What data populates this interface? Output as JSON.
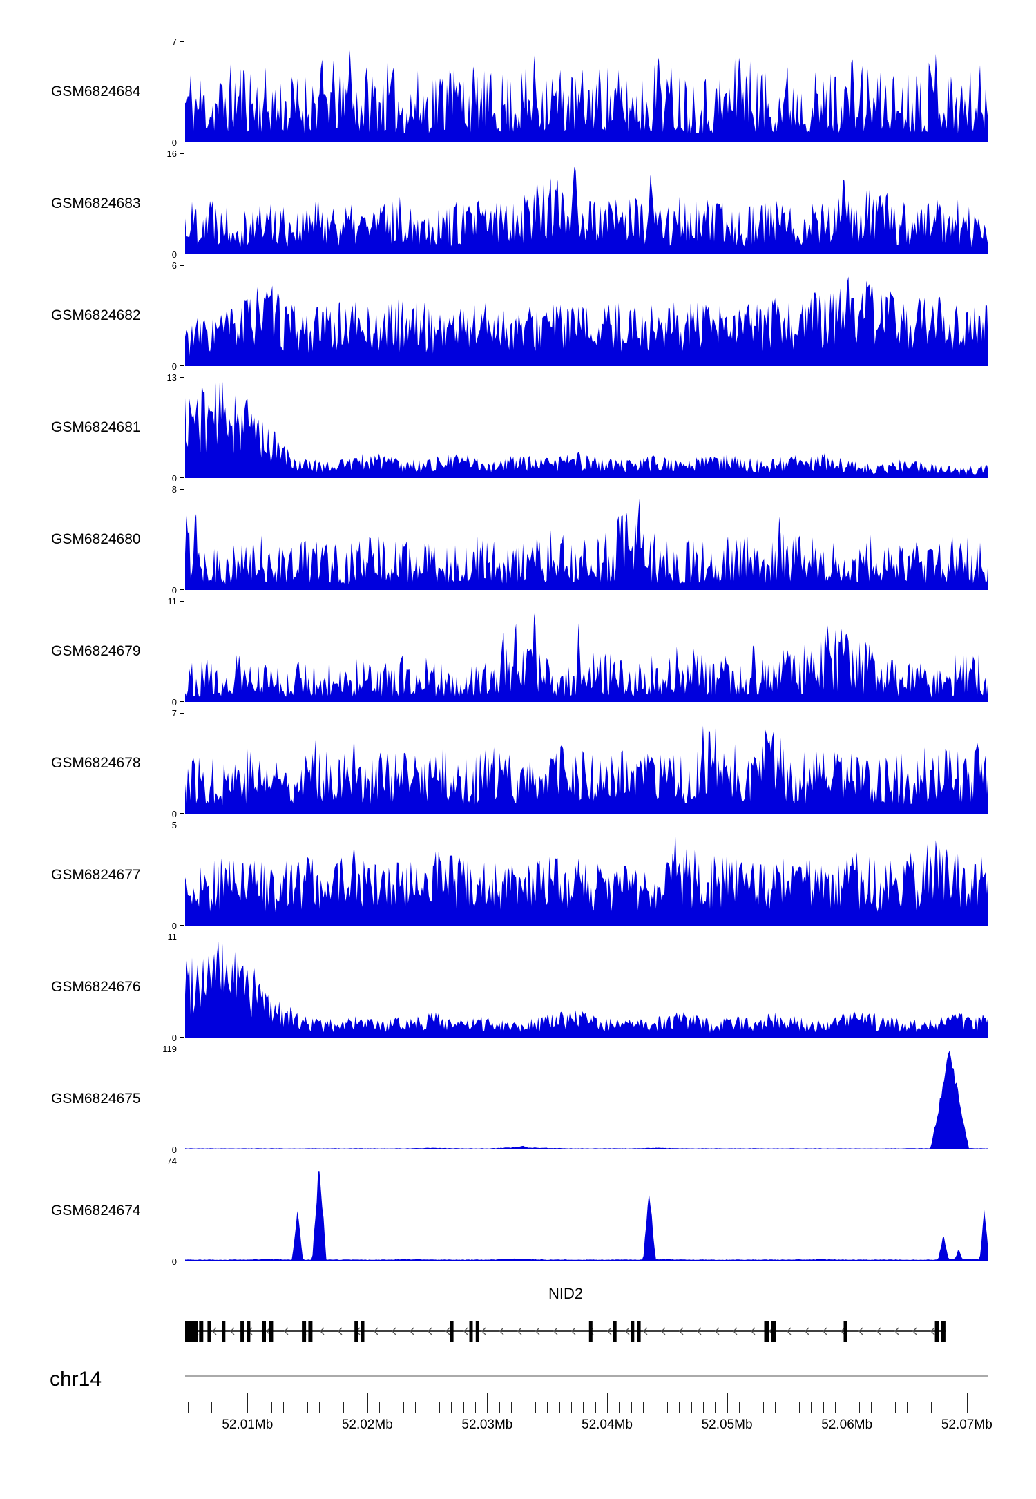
{
  "colors": {
    "coverage": "#0000dd",
    "gene": "#000000",
    "arrow": "#555555",
    "axis_line": "#aaaaaa",
    "tick": "#222222",
    "text": "#000000"
  },
  "gene": {
    "name": "NID2",
    "strand": "-",
    "extent": [
      0.0,
      0.947
    ],
    "exons": [
      {
        "f": 0.006,
        "w": 22
      },
      {
        "f": 0.02,
        "w": 6
      },
      {
        "f": 0.03,
        "w": 5
      },
      {
        "f": 0.048,
        "w": 5
      },
      {
        "f": 0.071,
        "w": 5
      },
      {
        "f": 0.079,
        "w": 5
      },
      {
        "f": 0.098,
        "w": 6
      },
      {
        "f": 0.107,
        "w": 6
      },
      {
        "f": 0.148,
        "w": 6
      },
      {
        "f": 0.156,
        "w": 6
      },
      {
        "f": 0.213,
        "w": 5
      },
      {
        "f": 0.221,
        "w": 5
      },
      {
        "f": 0.332,
        "w": 5
      },
      {
        "f": 0.356,
        "w": 5
      },
      {
        "f": 0.364,
        "w": 5
      },
      {
        "f": 0.505,
        "w": 5
      },
      {
        "f": 0.535,
        "w": 5
      },
      {
        "f": 0.557,
        "w": 5
      },
      {
        "f": 0.565,
        "w": 5
      },
      {
        "f": 0.724,
        "w": 7
      },
      {
        "f": 0.733,
        "w": 7
      },
      {
        "f": 0.822,
        "w": 5
      },
      {
        "f": 0.936,
        "w": 6
      },
      {
        "f": 0.944,
        "w": 6
      }
    ]
  },
  "axis": {
    "chromosome": "chr14",
    "unit": "Mb",
    "region_start": 52.0048,
    "region_end": 52.0718,
    "minor_start": 52.005,
    "minor_step": 0.001,
    "minor_end": 52.0715,
    "majors": [
      {
        "pos": 52.01,
        "label": "52.01Mb"
      },
      {
        "pos": 52.02,
        "label": "52.02Mb"
      },
      {
        "pos": 52.03,
        "label": "52.03Mb"
      },
      {
        "pos": 52.04,
        "label": "52.04Mb"
      },
      {
        "pos": 52.05,
        "label": "52.05Mb"
      },
      {
        "pos": 52.06,
        "label": "52.06Mb"
      },
      {
        "pos": 52.07,
        "label": "52.07Mb"
      }
    ]
  },
  "chart_data": {
    "type": "area",
    "title": "",
    "description": "Genome browser read-coverage tracks (11 GEO samples) over the NID2 locus on chr14, region ~52.0048-52.0718 Mb. Each track is a filled blue coverage histogram with its own y-axis from 0 to ymax.",
    "x_unit": "Mb",
    "x_range": [
      52.0048,
      52.0718
    ],
    "y_zero_label": "0",
    "tracks": [
      {
        "label": "GSM6824684",
        "ymax": 7,
        "ymax_label": "7",
        "y0_label": "0",
        "env": [
          0.85,
          0.7,
          0.9,
          0.75,
          0.7,
          0.88,
          0.72,
          0.9,
          0.7,
          0.8,
          0.86,
          0.7,
          0.78,
          0.9,
          0.72,
          0.84,
          0.7,
          0.88,
          0.78,
          0.7,
          0.9,
          0.78,
          0.84,
          0.7,
          0.88,
          0.74,
          0.82,
          0.88,
          0.72,
          0.84
        ],
        "peaks": [
          {
            "pos": 0.205,
            "h": 1.0,
            "w": 0.005
          },
          {
            "pos": 0.33,
            "h": 0.95,
            "w": 0.004
          },
          {
            "pos": 0.435,
            "h": 0.92,
            "w": 0.004
          },
          {
            "pos": 0.59,
            "h": 0.96,
            "w": 0.004
          },
          {
            "pos": 0.69,
            "h": 1.0,
            "w": 0.005
          },
          {
            "pos": 0.935,
            "h": 0.97,
            "w": 0.004
          }
        ],
        "render": {
          "seed": 11,
          "mix": 0.88,
          "pow": 1.4
        }
      },
      {
        "label": "GSM6824683",
        "ymax": 16,
        "ymax_label": "16",
        "y0_label": "0",
        "env": [
          0.55,
          0.68,
          0.52,
          0.6,
          0.48,
          0.62,
          0.5,
          0.55,
          0.6,
          0.5,
          0.54,
          0.58,
          0.62,
          0.95,
          0.6,
          0.55,
          0.65,
          0.5,
          0.6,
          0.54,
          0.5,
          0.6,
          0.5,
          0.64,
          0.56,
          0.7,
          0.52,
          0.6,
          0.56,
          0.3
        ],
        "peaks": [
          {
            "pos": 0.485,
            "h": 1.0,
            "w": 0.007
          },
          {
            "pos": 0.58,
            "h": 0.9,
            "w": 0.005
          },
          {
            "pos": 0.82,
            "h": 0.88,
            "w": 0.005
          }
        ],
        "render": {
          "seed": 22,
          "mix": 0.85,
          "pow": 1.1
        }
      },
      {
        "label": "GSM6824682",
        "ymax": 6,
        "ymax_label": "6",
        "y0_label": "0",
        "env": [
          0.45,
          0.55,
          0.68,
          0.85,
          0.6,
          0.62,
          0.68,
          0.58,
          0.72,
          0.6,
          0.64,
          0.68,
          0.58,
          0.68,
          0.62,
          0.6,
          0.68,
          0.62,
          0.68,
          0.6,
          0.64,
          0.68,
          0.72,
          0.78,
          0.95,
          0.85,
          0.68,
          0.72,
          0.68,
          0.62
        ],
        "peaks": [
          {
            "pos": 0.09,
            "h": 0.95,
            "w": 0.004
          },
          {
            "pos": 0.825,
            "h": 1.0,
            "w": 0.005
          }
        ],
        "render": {
          "seed": 33,
          "mix": 0.8,
          "pow": 0.95
        }
      },
      {
        "label": "GSM6824681",
        "ymax": 13,
        "ymax_label": "13",
        "y0_label": "0",
        "env": [
          0.9,
          1.0,
          0.92,
          0.55,
          0.22,
          0.18,
          0.22,
          0.28,
          0.18,
          0.22,
          0.26,
          0.18,
          0.24,
          0.2,
          0.28,
          0.22,
          0.18,
          0.24,
          0.18,
          0.26,
          0.22,
          0.18,
          0.24,
          0.28,
          0.18,
          0.14,
          0.2,
          0.14,
          0.12,
          0.14
        ],
        "peaks": [],
        "render": {
          "seed": 44,
          "mix": 0.75,
          "pow": 0.85
        }
      },
      {
        "label": "GSM6824680",
        "ymax": 8,
        "ymax_label": "8",
        "y0_label": "0",
        "env": [
          0.9,
          0.5,
          0.48,
          0.58,
          0.52,
          0.62,
          0.48,
          0.58,
          0.52,
          0.48,
          0.58,
          0.52,
          0.5,
          0.62,
          0.54,
          0.58,
          0.9,
          0.58,
          0.54,
          0.48,
          0.58,
          0.52,
          0.62,
          0.48,
          0.54,
          0.58,
          0.48,
          0.54,
          0.58,
          0.52
        ],
        "peaks": [
          {
            "pos": 0.013,
            "h": 0.95,
            "w": 0.004
          },
          {
            "pos": 0.55,
            "h": 0.85,
            "w": 0.004
          },
          {
            "pos": 0.565,
            "h": 1.0,
            "w": 0.004
          },
          {
            "pos": 0.74,
            "h": 0.85,
            "w": 0.004
          }
        ],
        "render": {
          "seed": 55,
          "mix": 0.88,
          "pow": 1.4
        }
      },
      {
        "label": "GSM6824679",
        "ymax": 11,
        "ymax_label": "11",
        "y0_label": "0",
        "env": [
          0.48,
          0.42,
          0.48,
          0.4,
          0.44,
          0.5,
          0.44,
          0.4,
          0.48,
          0.44,
          0.4,
          0.5,
          0.9,
          0.44,
          0.48,
          0.54,
          0.44,
          0.5,
          0.58,
          0.54,
          0.62,
          0.58,
          0.5,
          0.75,
          0.8,
          0.5,
          0.44,
          0.35,
          0.55,
          0.5
        ],
        "peaks": [
          {
            "pos": 0.435,
            "h": 1.0,
            "w": 0.004
          },
          {
            "pos": 0.49,
            "h": 0.8,
            "w": 0.004
          },
          {
            "pos": 0.8,
            "h": 0.85,
            "w": 0.005
          },
          {
            "pos": 0.825,
            "h": 0.82,
            "w": 0.004
          }
        ],
        "render": {
          "seed": 66,
          "mix": 0.88,
          "pow": 1.35
        }
      },
      {
        "label": "GSM6824678",
        "ymax": 7,
        "ymax_label": "7",
        "y0_label": "0",
        "env": [
          0.65,
          0.58,
          0.72,
          0.62,
          0.68,
          0.78,
          0.58,
          0.68,
          0.62,
          0.72,
          0.58,
          0.68,
          0.62,
          0.68,
          0.72,
          0.58,
          0.68,
          0.62,
          0.58,
          0.9,
          0.68,
          0.88,
          0.72,
          0.62,
          0.68,
          0.58,
          0.68,
          0.72,
          0.62,
          0.78
        ],
        "peaks": [
          {
            "pos": 0.21,
            "h": 0.9,
            "w": 0.004
          },
          {
            "pos": 0.645,
            "h": 1.0,
            "w": 0.004
          },
          {
            "pos": 0.725,
            "h": 0.97,
            "w": 0.004
          }
        ],
        "render": {
          "seed": 77,
          "mix": 0.86,
          "pow": 1.15
        }
      },
      {
        "label": "GSM6824677",
        "ymax": 5,
        "ymax_label": "5",
        "y0_label": "0",
        "env": [
          0.55,
          0.66,
          0.72,
          0.62,
          0.76,
          0.66,
          0.72,
          0.62,
          0.68,
          0.76,
          0.72,
          0.62,
          0.68,
          0.8,
          0.68,
          0.72,
          0.62,
          0.68,
          0.9,
          0.72,
          0.68,
          0.62,
          0.72,
          0.68,
          0.76,
          0.68,
          0.72,
          0.85,
          0.76,
          0.68
        ],
        "peaks": [
          {
            "pos": 0.21,
            "h": 0.9,
            "w": 0.004
          },
          {
            "pos": 0.61,
            "h": 1.0,
            "w": 0.004
          },
          {
            "pos": 0.935,
            "h": 0.95,
            "w": 0.005
          }
        ],
        "render": {
          "seed": 88,
          "mix": 0.8,
          "pow": 0.9
        }
      },
      {
        "label": "GSM6824676",
        "ymax": 11,
        "ymax_label": "11",
        "y0_label": "0",
        "env": [
          0.88,
          1.0,
          0.9,
          0.5,
          0.26,
          0.18,
          0.22,
          0.18,
          0.22,
          0.28,
          0.18,
          0.22,
          0.18,
          0.24,
          0.3,
          0.22,
          0.18,
          0.22,
          0.28,
          0.18,
          0.22,
          0.28,
          0.22,
          0.18,
          0.28,
          0.24,
          0.18,
          0.22,
          0.28,
          0.24
        ],
        "peaks": [],
        "render": {
          "seed": 99,
          "mix": 0.75,
          "pow": 0.85
        }
      },
      {
        "label": "GSM6824675",
        "ymax": 119,
        "ymax_label": "119",
        "y0_label": "0",
        "env": [
          0.012,
          0.012,
          0.012,
          0.012,
          0.012,
          0.012,
          0.012,
          0.012,
          0.012,
          0.018,
          0.012,
          0.012,
          0.025,
          0.018,
          0.012,
          0.012,
          0.012,
          0.018,
          0.012,
          0.012,
          0.012,
          0.012,
          0.012,
          0.012,
          0.012,
          0.012,
          0.012,
          0.015,
          0.015,
          0.012
        ],
        "peaks": [
          {
            "pos": 0.42,
            "h": 0.035,
            "w": 0.015
          },
          {
            "pos": 0.952,
            "h": 1.0,
            "w": 0.024
          }
        ],
        "render": {
          "seed": 111,
          "mix": 0.3,
          "pow": 1.0
        }
      },
      {
        "label": "GSM6824674",
        "ymax": 74,
        "ymax_label": "74",
        "y0_label": "0",
        "env": [
          0.02,
          0.02,
          0.02,
          0.025,
          0.02,
          0.02,
          0.02,
          0.02,
          0.025,
          0.02,
          0.02,
          0.02,
          0.03,
          0.02,
          0.02,
          0.02,
          0.02,
          0.025,
          0.02,
          0.02,
          0.02,
          0.02,
          0.02,
          0.025,
          0.02,
          0.02,
          0.02,
          0.02,
          0.03,
          0.025
        ],
        "peaks": [
          {
            "pos": 0.14,
            "h": 0.5,
            "w": 0.007
          },
          {
            "pos": 0.167,
            "h": 1.0,
            "w": 0.009
          },
          {
            "pos": 0.578,
            "h": 0.72,
            "w": 0.008
          },
          {
            "pos": 0.944,
            "h": 0.26,
            "w": 0.007
          },
          {
            "pos": 0.963,
            "h": 0.12,
            "w": 0.006
          },
          {
            "pos": 0.995,
            "h": 0.55,
            "w": 0.006
          }
        ],
        "render": {
          "seed": 122,
          "mix": 0.3,
          "pow": 1.0
        }
      }
    ]
  }
}
